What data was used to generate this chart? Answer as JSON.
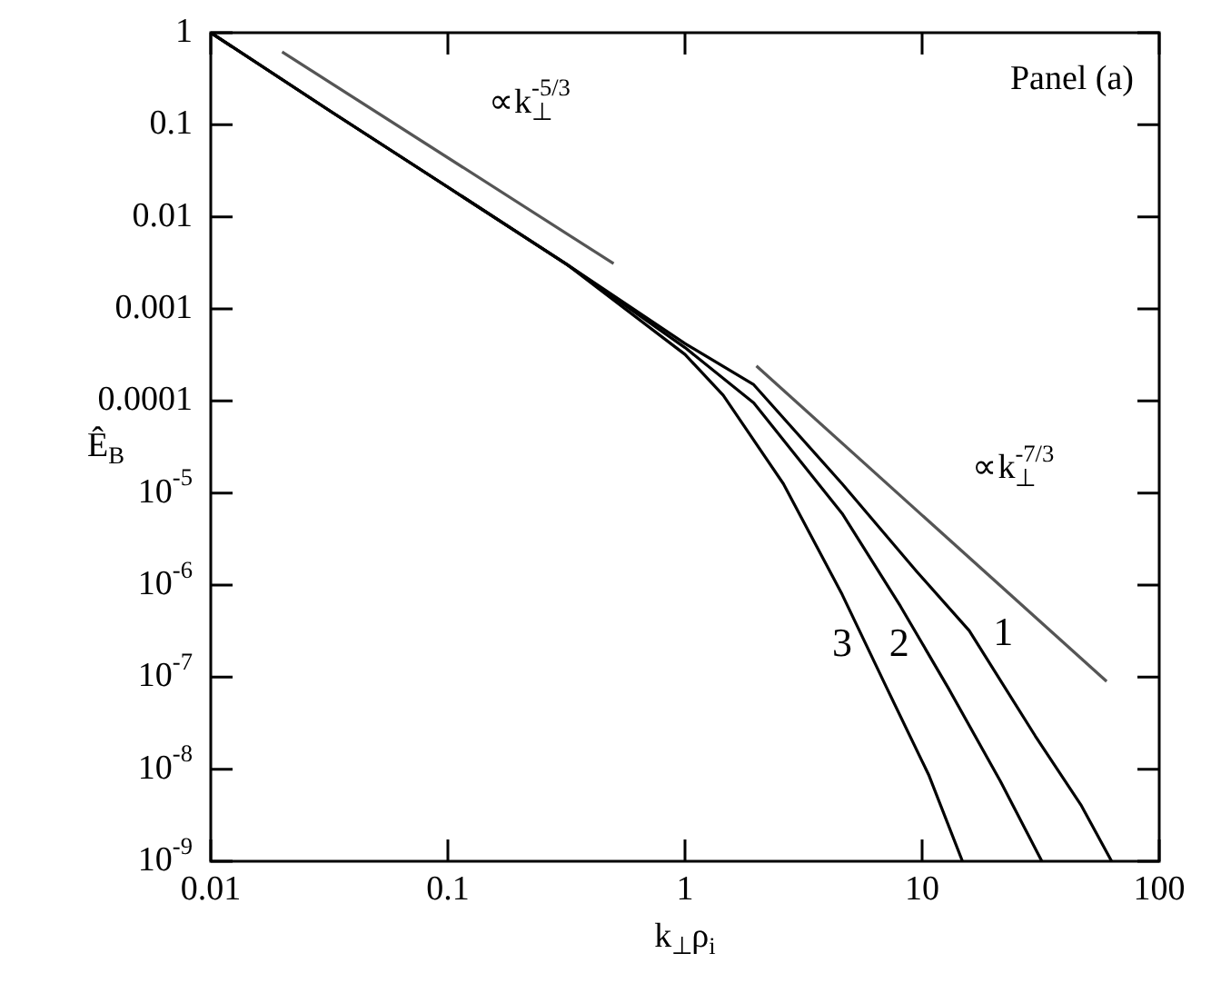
{
  "chart_data": {
    "type": "line",
    "xlabel": "k$_{⊥}$ρ$_{i}$",
    "ylabel": "Ê$_{B}$",
    "log": "xy",
    "marker": "none",
    "xlim": [
      0.01,
      100
    ],
    "xticks": [
      0.01,
      0.1,
      1,
      10,
      100
    ],
    "ylim": [
      1e-09,
      1
    ],
    "yticks": [
      1,
      0.1,
      0.01,
      0.001,
      0.0001,
      {
        "value": 1e-05,
        "label": "10$^{-5}$"
      },
      {
        "value": 1e-06,
        "label": "10$^{-6}$"
      },
      {
        "value": 1e-07,
        "label": "10$^{-7}$"
      },
      {
        "value": 1e-08,
        "label": "10$^{-8}$"
      },
      {
        "value": 1e-09,
        "label": "10$^{-9}$"
      }
    ],
    "series": [
      {
        "name": "1",
        "color": "#000000",
        "x": [
          0.01,
          0.032,
          0.1,
          0.32,
          1,
          1.95,
          4.6,
          9.5,
          15.8,
          30,
          47,
          63
        ],
        "values": [
          1,
          0.14,
          0.021,
          0.003,
          0.00042,
          0.00015,
          1.26e-05,
          1.4e-06,
          3.2e-07,
          2.3e-08,
          4e-09,
          1e-09
        ]
      },
      {
        "name": "2",
        "color": "#000000",
        "x": [
          0.01,
          0.032,
          0.1,
          0.32,
          1,
          1.95,
          4.6,
          8.1,
          12.9,
          21.4,
          32
        ],
        "values": [
          1,
          0.14,
          0.021,
          0.003,
          0.00038,
          9.5e-05,
          6e-06,
          5.9e-07,
          7.6e-08,
          7.4e-09,
          1e-09
        ]
      },
      {
        "name": "3",
        "color": "#000000",
        "x": [
          0.01,
          0.032,
          0.1,
          0.32,
          1,
          1.45,
          2.6,
          4.6,
          7.1,
          10.7,
          14.8
        ],
        "values": [
          1,
          0.14,
          0.021,
          0.003,
          0.00032,
          0.000115,
          1.26e-05,
          7.9e-07,
          7.6e-08,
          8.5e-09,
          1e-09
        ]
      },
      {
        "color": "#555555",
        "x": [
          0.02,
          0.5
        ],
        "values": [
          0.62,
          0.0031
        ]
      },
      {
        "color": "#555555",
        "x": [
          2,
          60
        ],
        "values": [
          0.00024,
          9e-08
        ]
      }
    ],
    "annotations": [
      "Panel (a)",
      "∝k$_{⊥}$$^{-5/3}$",
      "∝k$_{⊥}$$^{-7/3}$"
    ]
  }
}
